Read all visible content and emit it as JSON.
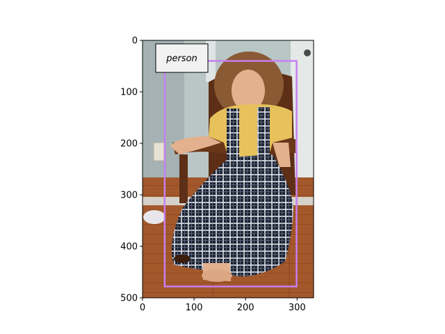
{
  "figure": {
    "background": "#ffffff",
    "image_extent": {
      "x_max": 332,
      "y_max": 500
    },
    "x_ticks": [
      0,
      100,
      200,
      300
    ],
    "y_ticks": [
      0,
      100,
      200,
      300,
      400,
      500
    ]
  },
  "photo": {
    "description_tokens": [
      "child",
      "rocking-chair",
      "plaid-dress",
      "wooden-floor",
      "wall-outlet"
    ],
    "colors": {
      "wall": "#b9c6c6",
      "wall_shadow": "#98a8ab",
      "door": "#e4e9e8",
      "floor": "#a3582b",
      "floor_dark": "#7b3d1a",
      "chair": "#5c2f16",
      "blouse": "#e6c15c",
      "dress": "#1e2432",
      "dress_check": "#d8dde6",
      "skin": "#e3b18d",
      "hair": "#8a5a35"
    }
  },
  "detections": [
    {
      "label": "person",
      "box": {
        "x1": 43,
        "y1": 40,
        "x2": 299,
        "y2": 478
      },
      "color": "#c77ef0"
    }
  ]
}
